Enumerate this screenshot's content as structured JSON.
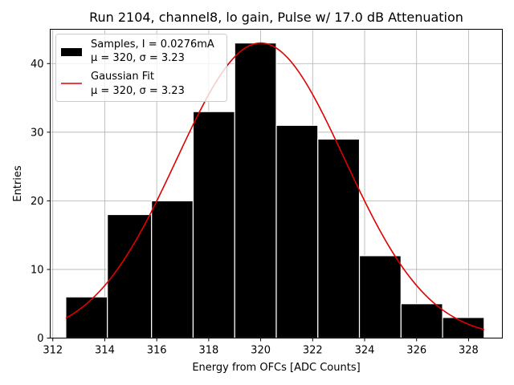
{
  "chart_data": {
    "type": "bar",
    "title": "Run 2104, channel8, lo gain, Pulse w/ 17.0 dB Attenuation",
    "xlabel": "Energy from OFCs [ADC Counts]",
    "ylabel": "Entries",
    "xlim": [
      311.9,
      329.3
    ],
    "ylim": [
      0,
      45
    ],
    "xticks": [
      312,
      314,
      316,
      318,
      320,
      322,
      324,
      326,
      328
    ],
    "yticks": [
      0,
      10,
      20,
      30,
      40
    ],
    "grid": true,
    "legend_position": "top-left",
    "histogram": {
      "name": "Samples, I = 0.0276mA",
      "stats": "μ = 320, σ = 3.23",
      "color": "#000000",
      "edge_color": "#ffffff",
      "bins": [
        {
          "left": 312.5,
          "right": 314.1,
          "count": 6
        },
        {
          "left": 314.1,
          "right": 315.8,
          "count": 18
        },
        {
          "left": 315.8,
          "right": 317.4,
          "count": 20
        },
        {
          "left": 317.4,
          "right": 319.0,
          "count": 33
        },
        {
          "left": 319.0,
          "right": 320.6,
          "count": 43
        },
        {
          "left": 320.6,
          "right": 322.2,
          "count": 31
        },
        {
          "left": 322.2,
          "right": 323.8,
          "count": 29
        },
        {
          "left": 323.8,
          "right": 325.4,
          "count": 12
        },
        {
          "left": 325.4,
          "right": 327.0,
          "count": 5
        },
        {
          "left": 327.0,
          "right": 328.6,
          "count": 3
        }
      ]
    },
    "fit": {
      "name": "Gaussian Fit",
      "stats": "μ = 320, σ = 3.23",
      "color": "#e00000",
      "amplitude": 43,
      "mu": 320,
      "sigma": 3.23,
      "x_range": [
        312.5,
        328.6
      ]
    }
  }
}
